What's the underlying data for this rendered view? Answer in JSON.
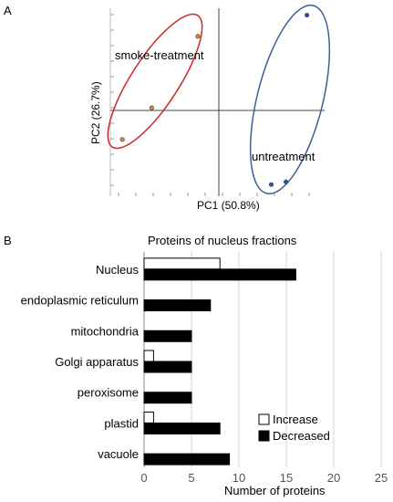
{
  "panels": {
    "a_label": "A",
    "b_label": "B"
  },
  "chart_data": [
    {
      "type": "scatter",
      "title": "",
      "xlabel": "PC1 (50.8%)",
      "ylabel": "PC2 (26.7%)",
      "grid": false,
      "series": [
        {
          "name": "smoke-treatment",
          "color": "#cc2a2a",
          "marker_color": "#e0882a",
          "points": [
            [
              -1.0,
              2.8
            ],
            [
              -3.2,
              0.1
            ],
            [
              -4.6,
              -1.1
            ]
          ]
        },
        {
          "name": "untreatment",
          "color": "#3b5f9a",
          "marker_color": "#2c55b8",
          "points": [
            [
              4.2,
              3.6
            ],
            [
              2.5,
              -2.8
            ],
            [
              3.2,
              -2.7
            ]
          ]
        }
      ]
    },
    {
      "type": "bar",
      "orientation": "horizontal",
      "title": "Proteins of nucleus fractions",
      "xlabel": "Number of proteins",
      "ylabel": "",
      "categories": [
        "Nucleus",
        "endoplasmic reticulum",
        "mitochondria",
        "Golgi apparatus",
        "peroxisome",
        "plastid",
        "vacuole"
      ],
      "series": [
        {
          "name": "Increase",
          "color": "#ffffff",
          "values": [
            8,
            0,
            0,
            1,
            0,
            1,
            0
          ]
        },
        {
          "name": "Decreased",
          "color": "#000000",
          "values": [
            16,
            7,
            5,
            5,
            5,
            8,
            9
          ]
        }
      ],
      "xlim": [
        0,
        25
      ],
      "xticks": [
        0,
        5,
        10,
        15,
        20,
        25
      ],
      "grid": true,
      "legend_position": "bottom-right"
    }
  ]
}
